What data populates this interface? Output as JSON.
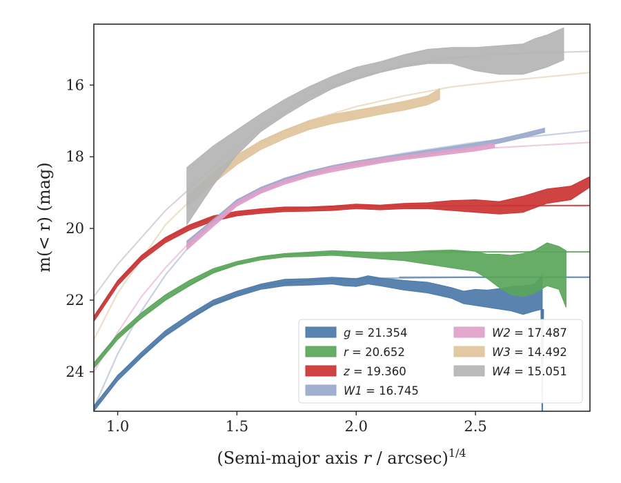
{
  "chart_data": {
    "type": "line",
    "xlabel_main": "(Semi-major axis ",
    "xlabel_r": "r",
    "xlabel_unit": " / arcsec)",
    "xlabel_exp": "1/4",
    "ylabel": "m(< r) (mag)",
    "xlim": [
      0.9,
      2.98
    ],
    "ylim": [
      25.1,
      14.3
    ],
    "y_inverted": true,
    "xticks": [
      1.0,
      1.5,
      2.0,
      2.5
    ],
    "xtick_labels": [
      "1.0",
      "1.5",
      "2.0",
      "2.5"
    ],
    "yticks": [
      16,
      18,
      20,
      22,
      24
    ],
    "ytick_labels": [
      "16",
      "18",
      "20",
      "22",
      "24"
    ],
    "grid": false,
    "legend_placement": "lower-right",
    "series": [
      {
        "band": "g",
        "name": "g = 21.354",
        "legend_var": "g",
        "legend_val": "21.354",
        "color": "#4c7aa8",
        "model": {
          "x": [
            0.9,
            1.0,
            1.2,
            1.4,
            1.6,
            1.8,
            2.0,
            2.2,
            2.5,
            2.98
          ],
          "y": [
            25.0,
            24.1,
            23.0,
            22.1,
            21.6,
            21.45,
            21.4,
            21.38,
            21.36,
            21.36
          ],
          "hline_from": 2.18
        },
        "band_x": [
          0.9,
          1.0,
          1.1,
          1.2,
          1.3,
          1.4,
          1.5,
          1.6,
          1.7,
          1.8,
          1.9,
          1.95,
          2.0,
          2.05,
          2.1,
          2.2,
          2.3,
          2.4,
          2.45,
          2.5,
          2.55,
          2.6,
          2.65,
          2.7,
          2.75,
          2.78
        ],
        "band_lo": [
          24.95,
          24.1,
          23.45,
          22.85,
          22.4,
          22.0,
          21.75,
          21.55,
          21.42,
          21.4,
          21.36,
          21.38,
          21.4,
          21.32,
          21.38,
          21.45,
          21.5,
          21.65,
          21.75,
          21.7,
          21.72,
          21.68,
          21.62,
          21.6,
          21.55,
          21.3
        ],
        "band_hi": [
          25.1,
          24.25,
          23.6,
          23.0,
          22.55,
          22.15,
          21.9,
          21.7,
          21.6,
          21.58,
          21.55,
          21.6,
          21.62,
          21.55,
          21.6,
          21.72,
          21.8,
          21.95,
          22.1,
          22.15,
          22.2,
          22.25,
          22.3,
          22.4,
          22.3,
          22.25
        ],
        "spike": {
          "x": 2.78,
          "top": 22.25,
          "bottom": 25.1
        }
      },
      {
        "band": "r",
        "name": "r = 20.652",
        "legend_var": "r",
        "legend_val": "20.652",
        "color": "#5aa55a",
        "model": {
          "x": [
            0.9,
            1.0,
            1.2,
            1.4,
            1.6,
            1.8,
            2.0,
            2.3,
            2.6,
            2.98
          ],
          "y": [
            23.8,
            23.0,
            22.0,
            21.2,
            20.8,
            20.7,
            20.67,
            20.66,
            20.655,
            20.652
          ],
          "hline_from": 2.3
        },
        "band_x": [
          0.9,
          1.0,
          1.1,
          1.2,
          1.3,
          1.4,
          1.5,
          1.6,
          1.7,
          1.8,
          1.9,
          2.0,
          2.1,
          2.2,
          2.3,
          2.4,
          2.5,
          2.55,
          2.6,
          2.65,
          2.7,
          2.75,
          2.8,
          2.85,
          2.88
        ],
        "band_lo": [
          23.75,
          22.95,
          22.35,
          21.85,
          21.45,
          21.12,
          20.92,
          20.78,
          20.7,
          20.66,
          20.62,
          20.65,
          20.68,
          20.66,
          20.62,
          20.6,
          20.65,
          20.72,
          20.72,
          20.75,
          20.7,
          20.6,
          20.4,
          20.5,
          20.62
        ],
        "band_hi": [
          23.9,
          23.1,
          22.5,
          22.0,
          21.6,
          21.25,
          21.02,
          20.88,
          20.8,
          20.78,
          20.75,
          20.8,
          20.85,
          20.9,
          21.0,
          21.1,
          21.2,
          21.4,
          21.65,
          21.85,
          21.9,
          21.8,
          21.6,
          21.7,
          22.2
        ]
      },
      {
        "band": "z",
        "name": "z = 19.360",
        "legend_var": "z",
        "legend_val": "19.360",
        "color": "#cc3333",
        "model": {
          "x": [
            0.9,
            1.0,
            1.1,
            1.2,
            1.3,
            1.4,
            1.6,
            1.8,
            2.0,
            2.98
          ],
          "y": [
            22.5,
            21.5,
            20.8,
            20.3,
            19.95,
            19.7,
            19.5,
            19.42,
            19.38,
            19.36
          ],
          "hline_from": 2.55
        },
        "band_x": [
          0.9,
          1.0,
          1.1,
          1.2,
          1.3,
          1.4,
          1.5,
          1.6,
          1.7,
          1.8,
          1.9,
          2.0,
          2.1,
          2.2,
          2.3,
          2.4,
          2.5,
          2.6,
          2.7,
          2.8,
          2.9,
          2.98
        ],
        "band_lo": [
          22.45,
          21.45,
          20.75,
          20.25,
          19.9,
          19.65,
          19.52,
          19.45,
          19.4,
          19.4,
          19.37,
          19.32,
          19.35,
          19.3,
          19.28,
          19.22,
          19.2,
          19.25,
          19.1,
          18.9,
          18.82,
          18.55
        ],
        "band_hi": [
          22.6,
          21.6,
          20.9,
          20.4,
          20.05,
          19.8,
          19.65,
          19.58,
          19.53,
          19.52,
          19.5,
          19.45,
          19.48,
          19.45,
          19.45,
          19.5,
          19.55,
          19.6,
          19.55,
          19.3,
          19.2,
          18.85
        ]
      },
      {
        "band": "W1",
        "name": "W1 = 16.745",
        "legend_var": "W1",
        "legend_val": "16.745",
        "color": "#9aa9cc",
        "model": {
          "x": [
            0.9,
            1.0,
            1.1,
            1.2,
            1.3,
            1.4,
            1.5,
            1.7,
            1.9,
            2.2,
            2.5,
            2.98
          ],
          "y": [
            25.0,
            23.5,
            22.3,
            21.3,
            20.5,
            19.8,
            19.2,
            18.6,
            18.25,
            17.9,
            17.6,
            17.27
          ]
        },
        "band_x": [
          1.29,
          1.4,
          1.5,
          1.6,
          1.7,
          1.8,
          1.9,
          2.0,
          2.1,
          2.2,
          2.3,
          2.4,
          2.5,
          2.6,
          2.7,
          2.79
        ],
        "band_lo": [
          20.35,
          19.75,
          19.2,
          18.85,
          18.6,
          18.4,
          18.25,
          18.12,
          18.02,
          17.92,
          17.82,
          17.72,
          17.62,
          17.5,
          17.35,
          17.2
        ],
        "band_hi": [
          20.5,
          19.88,
          19.32,
          18.97,
          18.72,
          18.52,
          18.36,
          18.24,
          18.14,
          18.04,
          17.94,
          17.84,
          17.74,
          17.62,
          17.47,
          17.32
        ]
      },
      {
        "band": "W2",
        "name": "W2 = 17.487",
        "legend_var": "W2",
        "legend_val": "17.487",
        "color": "#e0a0c8",
        "model": {
          "x": [
            0.9,
            1.0,
            1.1,
            1.2,
            1.3,
            1.4,
            1.5,
            1.7,
            1.9,
            2.2,
            2.5,
            2.98
          ],
          "y": [
            24.0,
            22.9,
            21.9,
            21.1,
            20.4,
            19.8,
            19.3,
            18.7,
            18.35,
            18.0,
            17.78,
            17.6
          ]
        },
        "band_x": [
          1.29,
          1.4,
          1.5,
          1.6,
          1.7,
          1.8,
          1.9,
          2.0,
          2.1,
          2.2,
          2.3,
          2.4,
          2.5,
          2.58
        ],
        "band_lo": [
          20.42,
          19.8,
          19.25,
          18.9,
          18.65,
          18.45,
          18.28,
          18.15,
          18.05,
          17.97,
          17.88,
          17.8,
          17.72,
          17.62
        ],
        "band_hi": [
          20.6,
          19.95,
          19.38,
          19.02,
          18.77,
          18.57,
          18.42,
          18.3,
          18.18,
          18.08,
          18.0,
          17.92,
          17.84,
          17.75
        ]
      },
      {
        "band": "W3",
        "name": "W3 = 14.492",
        "legend_var": "W3",
        "legend_val": "14.492",
        "color": "#e0c49c",
        "model": {
          "x": [
            0.9,
            1.0,
            1.2,
            1.4,
            1.6,
            1.8,
            2.0,
            2.2,
            2.4,
            2.6,
            2.98
          ],
          "y": [
            23.1,
            21.8,
            19.9,
            18.6,
            17.6,
            17.0,
            16.6,
            16.3,
            16.05,
            15.9,
            15.65
          ]
        },
        "band_x": [
          1.29,
          1.4,
          1.5,
          1.6,
          1.7,
          1.8,
          1.9,
          2.0,
          2.1,
          2.2,
          2.3,
          2.35
        ],
        "band_lo": [
          19.1,
          18.45,
          17.95,
          17.55,
          17.25,
          17.0,
          16.82,
          16.7,
          16.58,
          16.45,
          16.3,
          16.1
        ],
        "band_hi": [
          19.4,
          18.75,
          18.22,
          17.8,
          17.5,
          17.25,
          17.08,
          16.95,
          16.82,
          16.7,
          16.55,
          16.4
        ]
      },
      {
        "band": "W4",
        "name": "W4 = 15.051",
        "legend_var": "W4",
        "legend_val": "15.051",
        "color": "#b4b4b4",
        "model": {
          "x": [
            0.9,
            1.0,
            1.2,
            1.4,
            1.6,
            1.8,
            2.0,
            2.2,
            2.4,
            2.6,
            2.98
          ],
          "y": [
            21.9,
            21.0,
            19.5,
            18.3,
            17.2,
            16.3,
            15.8,
            15.45,
            15.25,
            15.13,
            15.06
          ]
        },
        "band_x": [
          1.29,
          1.4,
          1.5,
          1.6,
          1.7,
          1.8,
          1.9,
          2.0,
          2.1,
          2.2,
          2.3,
          2.4,
          2.5,
          2.6,
          2.7,
          2.75,
          2.8,
          2.87
        ],
        "band_lo": [
          18.3,
          17.7,
          17.25,
          16.8,
          16.4,
          16.05,
          15.75,
          15.5,
          15.35,
          15.15,
          15.0,
          14.95,
          14.95,
          14.9,
          14.85,
          14.7,
          14.6,
          14.4
        ],
        "band_hi": [
          19.9,
          18.8,
          17.95,
          17.3,
          16.85,
          16.45,
          16.1,
          15.85,
          15.65,
          15.5,
          15.4,
          15.4,
          15.6,
          15.7,
          15.7,
          15.6,
          15.5,
          15.3
        ]
      }
    ]
  }
}
